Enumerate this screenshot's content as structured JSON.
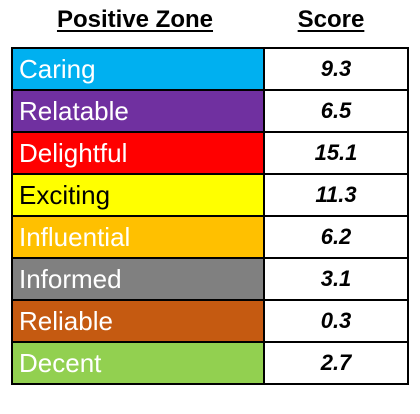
{
  "chart_data": {
    "type": "table",
    "columns": [
      "Positive Zone",
      "Score"
    ],
    "rows": [
      {
        "zone": "Caring",
        "score": "9.3",
        "color": "#00B0F0",
        "text_color": "#ffffff"
      },
      {
        "zone": "Relatable",
        "score": "6.5",
        "color": "#7030A0",
        "text_color": "#ffffff"
      },
      {
        "zone": "Delightful",
        "score": "15.1",
        "color": "#FF0000",
        "text_color": "#ffffff"
      },
      {
        "zone": "Exciting",
        "score": "11.3",
        "color": "#FFFF00",
        "text_color": "#000000"
      },
      {
        "zone": "Influential",
        "score": "6.2",
        "color": "#FFC000",
        "text_color": "#ffffff"
      },
      {
        "zone": "Informed",
        "score": "3.1",
        "color": "#808080",
        "text_color": "#ffffff"
      },
      {
        "zone": "Reliable",
        "score": "0.3",
        "color": "#C55A11",
        "text_color": "#ffffff"
      },
      {
        "zone": "Decent",
        "score": "2.7",
        "color": "#92D050",
        "text_color": "#ffffff"
      }
    ]
  }
}
